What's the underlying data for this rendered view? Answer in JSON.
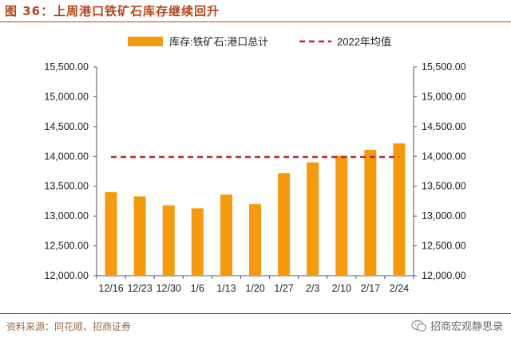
{
  "figure": {
    "title": "图 36：上周港口铁矿石库存继续回升",
    "source": "资料来源：同花顺、招商证券",
    "watermark": "招商宏观静思录",
    "watermark_icon": "wechat-icon"
  },
  "colors": {
    "bar": "#f59a0e",
    "avg_line": "#b9273b",
    "title": "#b5451b"
  },
  "chart_data": {
    "type": "bar",
    "categories": [
      "12/16",
      "12/23",
      "12/30",
      "1/6",
      "1/13",
      "1/20",
      "1/27",
      "2/3",
      "2/10",
      "2/17",
      "2/24"
    ],
    "series": [
      {
        "name": "库存:铁矿石:港口总计",
        "type": "bar",
        "values": [
          13400,
          13330,
          13180,
          13130,
          13360,
          13200,
          13720,
          13900,
          14010,
          14110,
          14220
        ]
      },
      {
        "name": "2022年均值",
        "type": "line-dashed",
        "values": [
          13990,
          13990,
          13990,
          13990,
          13990,
          13990,
          13990,
          13990,
          13990,
          13990,
          13990
        ]
      }
    ],
    "ylim": [
      12000,
      15500
    ],
    "yticks": [
      "12,000.00",
      "12,500.00",
      "13,000.00",
      "13,500.00",
      "14,000.00",
      "14,500.00",
      "15,000.00",
      "15,500.00"
    ],
    "ytick_values": [
      12000,
      12500,
      13000,
      13500,
      14000,
      14500,
      15000,
      15500
    ],
    "secondary_y": true,
    "legend": "top",
    "grid": false
  }
}
